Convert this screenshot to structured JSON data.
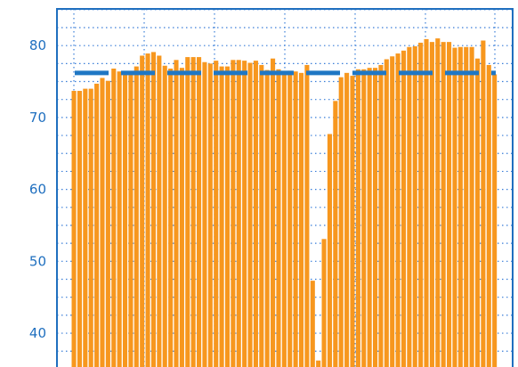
{
  "chart_data": {
    "type": "bar",
    "title": "",
    "xlabel": "",
    "ylabel": "",
    "ylim": [
      35.3,
      85.1
    ],
    "yticks": [
      40,
      50,
      60,
      70,
      80
    ],
    "ytick_labels": [
      "40",
      "50",
      "60",
      "70",
      "80"
    ],
    "grid": true,
    "legend": "none",
    "colors": {
      "bars": "#f7971e",
      "reference": "#1f77c4",
      "grid": "#3a7ed8",
      "frame": "#1f6fbf",
      "tick_text": "#1f6fbf"
    },
    "series": [
      {
        "values": [
          73.7,
          73.7,
          74.0,
          74.0,
          74.7,
          75.5,
          75.1,
          76.8,
          76.4,
          76.0,
          76.2,
          77.1,
          78.6,
          78.9,
          79.1,
          78.6,
          77.2,
          76.8,
          78.0,
          76.9,
          78.4,
          78.4,
          78.4,
          77.7,
          77.5,
          77.9,
          77.1,
          77.1,
          78.0,
          78.0,
          77.9,
          77.6,
          77.9,
          77.3,
          76.6,
          78.2,
          76.7,
          76.4,
          76.5,
          76.4,
          76.2,
          77.3,
          47.3,
          36.2,
          53.1,
          67.7,
          72.3,
          75.6,
          76.2,
          75.8,
          76.7,
          76.7,
          76.9,
          76.9,
          77.3,
          78.1,
          78.5,
          78.9,
          79.3,
          79.8,
          79.9,
          80.4,
          80.9,
          80.5,
          81.0,
          80.5,
          80.5,
          79.7,
          79.8,
          79.8,
          79.8,
          78.2,
          80.7,
          77.3,
          76.0
        ]
      },
      {
        "type": "line",
        "style": "dashed",
        "values": [
          76.2
        ]
      }
    ]
  }
}
